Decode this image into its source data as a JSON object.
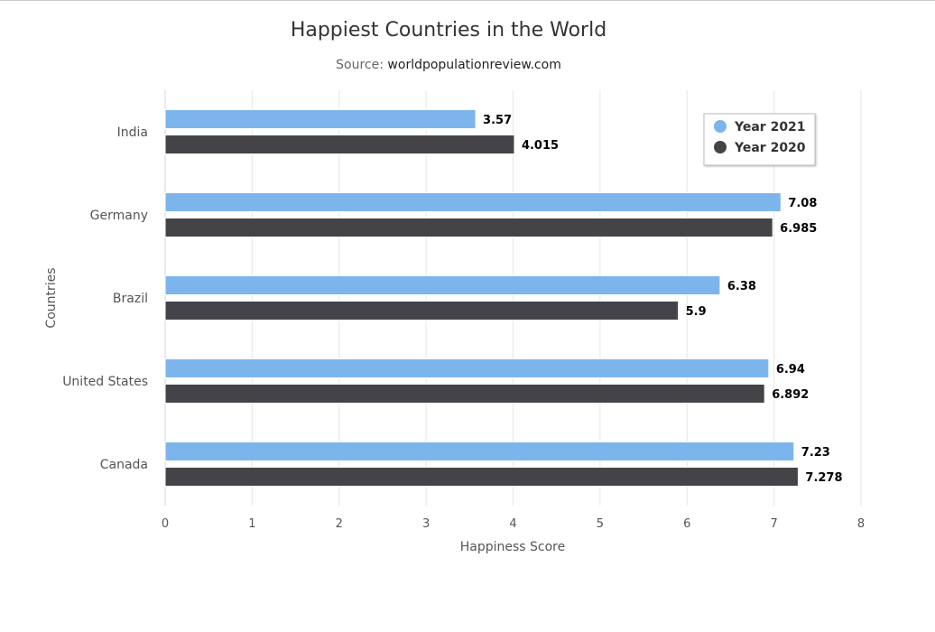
{
  "chart_data": {
    "type": "bar",
    "orientation": "horizontal",
    "title": "Happiest Countries in the World",
    "subtitle_prefix": "Source: ",
    "subtitle_source": "worldpopulationreview.com",
    "xlabel": "Happiness Score",
    "ylabel": "Countries",
    "categories": [
      "India",
      "Germany",
      "Brazil",
      "United States",
      "Canada"
    ],
    "series": [
      {
        "name": "Year 2021",
        "color": "#7cb5ec",
        "values": [
          3.57,
          7.08,
          6.38,
          6.94,
          7.23
        ],
        "labels": [
          "3.57",
          "7.08",
          "6.38",
          "6.94",
          "7.23"
        ]
      },
      {
        "name": "Year 2020",
        "color": "#434348",
        "values": [
          4.015,
          6.985,
          5.9,
          6.892,
          7.278
        ],
        "labels": [
          "4.015",
          "6.985",
          "5.9",
          "6.892",
          "7.278"
        ]
      }
    ],
    "xlim": [
      0,
      8
    ],
    "xticks": [
      "0",
      "1",
      "2",
      "3",
      "4",
      "5",
      "6",
      "7",
      "8"
    ],
    "grid": true,
    "legend_position": "top-right"
  }
}
